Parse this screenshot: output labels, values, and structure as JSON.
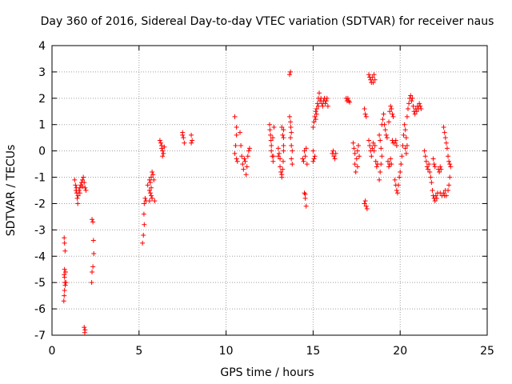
{
  "chart_data": {
    "type": "scatter",
    "title": "Day 360 of 2016, Sidereal Day-to-day VTEC variation (SDTVAR) for receiver naus",
    "xlabel": "GPS time / hours",
    "ylabel": "SDTVAR / TECUs",
    "xlim": [
      0,
      25
    ],
    "ylim": [
      -7,
      4
    ],
    "xticks": [
      0,
      5,
      10,
      15,
      20,
      25
    ],
    "yticks": [
      -7,
      -6,
      -5,
      -4,
      -3,
      -2,
      -1,
      0,
      1,
      2,
      3,
      4
    ],
    "grid": true,
    "marker": "+",
    "color": "#ff0000",
    "series": [
      {
        "name": "SDTVAR",
        "points": [
          [
            0.7,
            -3.3
          ],
          [
            0.72,
            -3.5
          ],
          [
            0.75,
            -3.8
          ],
          [
            0.72,
            -4.5
          ],
          [
            0.7,
            -4.7
          ],
          [
            0.72,
            -4.8
          ],
          [
            0.74,
            -5.0
          ],
          [
            0.76,
            -5.1
          ],
          [
            0.72,
            -5.3
          ],
          [
            0.7,
            -5.5
          ],
          [
            0.68,
            -5.7
          ],
          [
            0.78,
            -4.6
          ],
          [
            0.8,
            -5.0
          ],
          [
            1.3,
            -1.1
          ],
          [
            1.35,
            -1.3
          ],
          [
            1.38,
            -1.5
          ],
          [
            1.4,
            -1.4
          ],
          [
            1.42,
            -1.6
          ],
          [
            1.45,
            -1.8
          ],
          [
            1.48,
            -2.0
          ],
          [
            1.5,
            -1.7
          ],
          [
            1.55,
            -1.5
          ],
          [
            1.6,
            -1.4
          ],
          [
            1.65,
            -1.3
          ],
          [
            1.7,
            -1.2
          ],
          [
            1.75,
            -1.1
          ],
          [
            1.8,
            -1.0
          ],
          [
            1.85,
            -1.2
          ],
          [
            1.9,
            -1.4
          ],
          [
            1.95,
            -1.5
          ],
          [
            1.75,
            -1.35
          ],
          [
            1.6,
            -1.6
          ],
          [
            1.85,
            -6.7
          ],
          [
            1.9,
            -6.8
          ],
          [
            1.88,
            -6.9
          ],
          [
            2.3,
            -2.6
          ],
          [
            2.35,
            -2.7
          ],
          [
            2.38,
            -3.4
          ],
          [
            2.4,
            -3.9
          ],
          [
            2.35,
            -4.4
          ],
          [
            2.3,
            -4.6
          ],
          [
            2.28,
            -5.0
          ],
          [
            5.2,
            -3.5
          ],
          [
            5.25,
            -3.2
          ],
          [
            5.3,
            -2.8
          ],
          [
            5.28,
            -2.4
          ],
          [
            5.3,
            -2.0
          ],
          [
            5.35,
            -1.8
          ],
          [
            5.4,
            -1.9
          ],
          [
            5.5,
            -1.3
          ],
          [
            5.6,
            -1.5
          ],
          [
            5.65,
            -1.6
          ],
          [
            5.7,
            -1.7
          ],
          [
            5.75,
            -1.8
          ],
          [
            5.7,
            -1.4
          ],
          [
            5.65,
            -1.2
          ],
          [
            5.6,
            -1.1
          ],
          [
            5.7,
            -1.0
          ],
          [
            5.75,
            -0.8
          ],
          [
            5.8,
            -0.9
          ],
          [
            5.85,
            -1.1
          ],
          [
            5.9,
            -1.9
          ],
          [
            5.6,
            -1.9
          ],
          [
            6.2,
            0.4
          ],
          [
            6.25,
            0.3
          ],
          [
            6.3,
            0.2
          ],
          [
            6.35,
            0.0
          ],
          [
            6.4,
            -0.1
          ],
          [
            6.3,
            0.1
          ],
          [
            6.45,
            0.15
          ],
          [
            6.35,
            -0.2
          ],
          [
            7.5,
            0.6
          ],
          [
            7.55,
            0.5
          ],
          [
            7.6,
            0.3
          ],
          [
            7.5,
            0.7
          ],
          [
            8.0,
            0.6
          ],
          [
            8.05,
            0.4
          ],
          [
            8.0,
            0.3
          ],
          [
            10.5,
            1.3
          ],
          [
            10.6,
            0.9
          ],
          [
            10.6,
            0.6
          ],
          [
            10.55,
            0.2
          ],
          [
            10.5,
            -0.1
          ],
          [
            10.6,
            -0.3
          ],
          [
            10.65,
            -0.4
          ],
          [
            10.8,
            0.7
          ],
          [
            10.85,
            0.2
          ],
          [
            10.9,
            -0.2
          ],
          [
            10.95,
            -0.5
          ],
          [
            11.0,
            -0.7
          ],
          [
            11.05,
            -0.3
          ],
          [
            11.1,
            -0.4
          ],
          [
            11.15,
            -0.9
          ],
          [
            11.2,
            -0.6
          ],
          [
            11.3,
            0.0
          ],
          [
            11.35,
            0.1
          ],
          [
            11.25,
            -0.2
          ],
          [
            12.5,
            1.0
          ],
          [
            12.52,
            0.8
          ],
          [
            12.55,
            0.6
          ],
          [
            12.58,
            0.4
          ],
          [
            12.6,
            0.2
          ],
          [
            12.6,
            0.0
          ],
          [
            12.65,
            -0.2
          ],
          [
            12.7,
            -0.4
          ],
          [
            12.72,
            -0.2
          ],
          [
            12.68,
            0.5
          ],
          [
            12.75,
            0.9
          ],
          [
            13.0,
            0.1
          ],
          [
            13.05,
            -0.1
          ],
          [
            13.1,
            -0.3
          ],
          [
            13.1,
            -0.6
          ],
          [
            13.15,
            -0.8
          ],
          [
            13.2,
            -1.0
          ],
          [
            13.2,
            -0.9
          ],
          [
            13.25,
            -0.7
          ],
          [
            13.0,
            -0.2
          ],
          [
            13.2,
            0.9
          ],
          [
            13.3,
            0.8
          ],
          [
            13.3,
            0.5
          ],
          [
            13.25,
            0.6
          ],
          [
            13.3,
            0.2
          ],
          [
            13.3,
            0.0
          ],
          [
            13.28,
            -0.4
          ],
          [
            13.65,
            1.3
          ],
          [
            13.7,
            1.1
          ],
          [
            13.72,
            0.9
          ],
          [
            13.75,
            0.7
          ],
          [
            13.7,
            0.5
          ],
          [
            13.75,
            0.2
          ],
          [
            13.8,
            0.0
          ],
          [
            13.75,
            -0.3
          ],
          [
            13.8,
            -0.5
          ],
          [
            13.65,
            2.9
          ],
          [
            13.7,
            3.0
          ],
          [
            14.4,
            -0.3
          ],
          [
            14.45,
            -0.4
          ],
          [
            14.5,
            0.0
          ],
          [
            14.55,
            -0.2
          ],
          [
            14.6,
            0.1
          ],
          [
            14.65,
            -0.5
          ],
          [
            14.5,
            -1.6
          ],
          [
            14.55,
            -1.8
          ],
          [
            14.6,
            -2.1
          ],
          [
            14.55,
            -1.65
          ],
          [
            15.0,
            0.0
          ],
          [
            15.05,
            -0.3
          ],
          [
            15.1,
            -0.2
          ],
          [
            15.0,
            -0.4
          ],
          [
            15.0,
            0.9
          ],
          [
            15.05,
            1.1
          ],
          [
            15.1,
            1.3
          ],
          [
            15.15,
            1.5
          ],
          [
            15.2,
            1.6
          ],
          [
            15.25,
            1.8
          ],
          [
            15.3,
            2.0
          ],
          [
            15.35,
            2.2
          ],
          [
            15.4,
            1.9
          ],
          [
            15.45,
            2.0
          ],
          [
            15.5,
            1.8
          ],
          [
            15.55,
            1.7
          ],
          [
            15.6,
            1.9
          ],
          [
            15.65,
            2.0
          ],
          [
            15.7,
            1.8
          ],
          [
            15.75,
            1.9
          ],
          [
            15.8,
            2.0
          ],
          [
            15.85,
            1.7
          ],
          [
            15.3,
            1.7
          ],
          [
            15.2,
            1.4
          ],
          [
            15.15,
            1.2
          ],
          [
            16.1,
            -0.1
          ],
          [
            16.15,
            0.0
          ],
          [
            16.2,
            -0.2
          ],
          [
            16.25,
            -0.3
          ],
          [
            16.3,
            -0.1
          ],
          [
            16.9,
            2.0
          ],
          [
            16.95,
            1.9
          ],
          [
            17.0,
            2.0
          ],
          [
            17.05,
            1.9
          ],
          [
            17.1,
            1.85
          ],
          [
            17.3,
            0.3
          ],
          [
            17.35,
            0.1
          ],
          [
            17.4,
            -0.1
          ],
          [
            17.4,
            -0.5
          ],
          [
            17.45,
            -0.8
          ],
          [
            17.5,
            -0.3
          ],
          [
            17.55,
            0.0
          ],
          [
            17.6,
            0.2
          ],
          [
            17.65,
            -0.2
          ],
          [
            17.55,
            -0.6
          ],
          [
            17.95,
            1.6
          ],
          [
            18.0,
            1.4
          ],
          [
            18.05,
            1.3
          ],
          [
            18.0,
            -1.9
          ],
          [
            18.05,
            -2.1
          ],
          [
            18.1,
            -2.2
          ],
          [
            17.95,
            -2.0
          ],
          [
            18.2,
            2.9
          ],
          [
            18.25,
            2.8
          ],
          [
            18.3,
            2.7
          ],
          [
            18.35,
            2.6
          ],
          [
            18.4,
            2.8
          ],
          [
            18.45,
            2.6
          ],
          [
            18.5,
            2.9
          ],
          [
            18.55,
            2.7
          ],
          [
            18.2,
            0.4
          ],
          [
            18.25,
            0.2
          ],
          [
            18.3,
            0.0
          ],
          [
            18.35,
            -0.2
          ],
          [
            18.4,
            0.1
          ],
          [
            18.45,
            0.3
          ],
          [
            18.5,
            0.0
          ],
          [
            18.55,
            0.2
          ],
          [
            18.6,
            -0.4
          ],
          [
            18.65,
            -0.6
          ],
          [
            18.7,
            -0.5
          ],
          [
            18.8,
            0.6
          ],
          [
            18.85,
            0.4
          ],
          [
            18.9,
            0.1
          ],
          [
            18.95,
            -0.2
          ],
          [
            18.8,
            -1.1
          ],
          [
            18.85,
            -0.8
          ],
          [
            18.9,
            -0.5
          ],
          [
            18.95,
            1.0
          ],
          [
            19.0,
            1.2
          ],
          [
            19.05,
            1.4
          ],
          [
            19.1,
            1.0
          ],
          [
            19.15,
            0.8
          ],
          [
            19.2,
            0.6
          ],
          [
            19.25,
            0.5
          ],
          [
            19.3,
            -0.4
          ],
          [
            19.35,
            -0.6
          ],
          [
            19.4,
            -0.5
          ],
          [
            19.45,
            -0.3
          ],
          [
            19.5,
            -0.5
          ],
          [
            19.4,
            1.5
          ],
          [
            19.45,
            1.7
          ],
          [
            19.5,
            1.6
          ],
          [
            19.55,
            1.4
          ],
          [
            19.6,
            1.3
          ],
          [
            19.35,
            1.1
          ],
          [
            19.55,
            0.4
          ],
          [
            19.6,
            0.3
          ],
          [
            19.7,
            0.3
          ],
          [
            19.75,
            0.4
          ],
          [
            19.8,
            0.2
          ],
          [
            19.7,
            -1.1
          ],
          [
            19.75,
            -1.3
          ],
          [
            19.8,
            -1.5
          ],
          [
            19.85,
            -1.6
          ],
          [
            19.9,
            -1.3
          ],
          [
            19.95,
            -1.0
          ],
          [
            20.0,
            -0.8
          ],
          [
            20.05,
            -0.5
          ],
          [
            20.1,
            -0.2
          ],
          [
            20.15,
            0.2
          ],
          [
            20.2,
            0.6
          ],
          [
            20.25,
            1.0
          ],
          [
            20.3,
            0.8
          ],
          [
            20.35,
            0.5
          ],
          [
            20.4,
            1.3
          ],
          [
            20.45,
            1.6
          ],
          [
            20.5,
            1.8
          ],
          [
            20.55,
            2.0
          ],
          [
            20.6,
            2.1
          ],
          [
            20.65,
            1.9
          ],
          [
            20.7,
            2.0
          ],
          [
            20.75,
            1.7
          ],
          [
            20.8,
            1.5
          ],
          [
            20.85,
            1.4
          ],
          [
            20.9,
            1.6
          ],
          [
            20.95,
            1.5
          ],
          [
            21.0,
            1.7
          ],
          [
            21.05,
            1.6
          ],
          [
            21.1,
            1.8
          ],
          [
            21.15,
            1.7
          ],
          [
            21.2,
            1.6
          ],
          [
            20.3,
            0.1
          ],
          [
            20.35,
            -0.1
          ],
          [
            20.4,
            0.2
          ],
          [
            21.4,
            0.0
          ],
          [
            21.45,
            -0.2
          ],
          [
            21.5,
            -0.4
          ],
          [
            21.55,
            -0.6
          ],
          [
            21.6,
            -0.7
          ],
          [
            21.65,
            -0.5
          ],
          [
            21.7,
            -0.8
          ],
          [
            21.75,
            -1.0
          ],
          [
            21.8,
            -1.2
          ],
          [
            21.85,
            -1.5
          ],
          [
            21.9,
            -1.7
          ],
          [
            21.95,
            -1.8
          ],
          [
            22.0,
            -1.9
          ],
          [
            22.05,
            -1.7
          ],
          [
            22.1,
            -1.8
          ],
          [
            22.15,
            -1.6
          ],
          [
            22.2,
            -0.7
          ],
          [
            22.25,
            -0.8
          ],
          [
            22.3,
            -0.6
          ],
          [
            22.35,
            -0.7
          ],
          [
            21.9,
            -0.3
          ],
          [
            21.95,
            -0.5
          ],
          [
            22.0,
            -0.6
          ],
          [
            22.3,
            -1.6
          ],
          [
            22.4,
            -1.7
          ],
          [
            22.5,
            -1.6
          ],
          [
            22.55,
            -1.7
          ],
          [
            22.6,
            -1.5
          ],
          [
            22.65,
            -1.7
          ],
          [
            22.5,
            0.9
          ],
          [
            22.55,
            0.7
          ],
          [
            22.6,
            0.5
          ],
          [
            22.65,
            0.3
          ],
          [
            22.7,
            0.1
          ],
          [
            22.75,
            -0.2
          ],
          [
            22.8,
            -0.4
          ],
          [
            22.85,
            -0.5
          ],
          [
            22.9,
            -0.6
          ],
          [
            22.85,
            -1.0
          ],
          [
            22.8,
            -1.3
          ],
          [
            22.75,
            -1.5
          ]
        ]
      }
    ]
  }
}
